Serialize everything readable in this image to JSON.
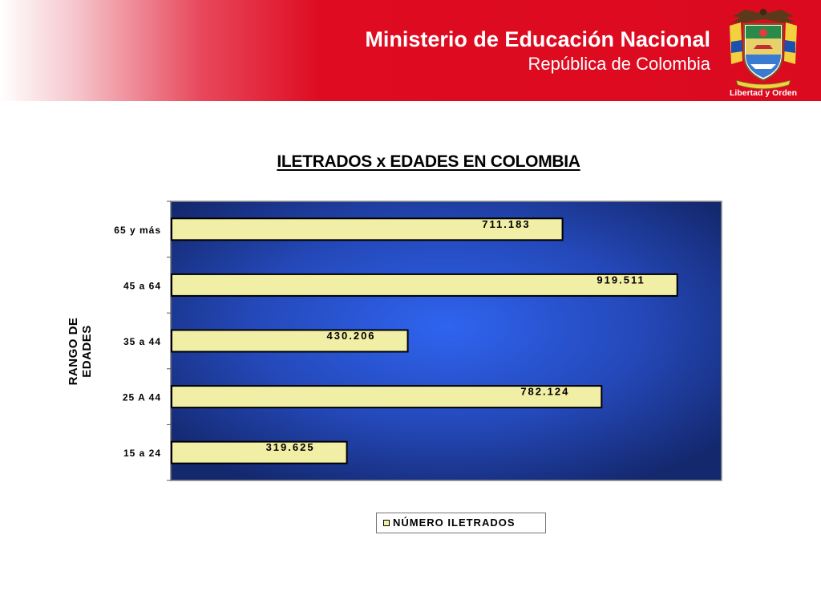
{
  "header": {
    "title": "Ministerio de Educación Nacional",
    "subtitle": "República de Colombia",
    "logo_motto": "Libertad y Orden"
  },
  "colors": {
    "header_red": "#dc0a1f",
    "bar_fill": "#f1eea6",
    "plot_center": "#2f64f0",
    "plot_edge": "#14286e"
  },
  "chart_data": {
    "type": "bar",
    "orientation": "horizontal",
    "title": "ILETRADOS x EDADES EN COLOMBIA",
    "ylabel": [
      "RANGO DE",
      "EDADES"
    ],
    "xlabel": "",
    "categories": [
      "15 a 24",
      "25 A 44",
      "35 a 44",
      "45 a 64",
      "65 y más"
    ],
    "series": [
      {
        "name": "NÚMERO ILETRADOS",
        "values": [
          319625,
          782124,
          430206,
          919511,
          711183
        ],
        "labels": [
          "319.625",
          "782.124",
          "430.206",
          "919.511",
          "711.183"
        ]
      }
    ],
    "xlim": [
      0,
      1000000
    ],
    "grid": false,
    "legend_position": "bottom"
  }
}
